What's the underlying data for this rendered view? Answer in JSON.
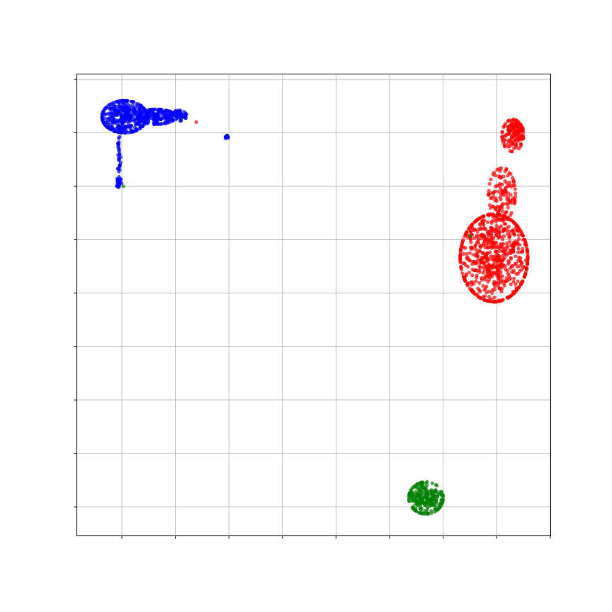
{
  "chart_data": {
    "type": "scatter",
    "title": "",
    "xlabel": "",
    "ylabel": "",
    "x_ticks": [
      0,
      1,
      2,
      3,
      4,
      5,
      6,
      7,
      8
    ],
    "y_ticks": [
      0,
      1,
      2,
      3,
      4,
      5,
      6,
      7,
      8
    ],
    "xlim": [
      -0.84,
      8.01
    ],
    "ylim": [
      -0.54,
      8.1
    ],
    "grid": true,
    "tick_labels_visible": false,
    "point_alpha": 0.65,
    "clusters": [
      {
        "color": "#0000ff",
        "regions": [
          {
            "cx": 0.05,
            "cy": 7.3,
            "rx": 0.42,
            "ry": 0.3,
            "count": 380
          },
          {
            "cx": 0.65,
            "cy": 7.3,
            "rx": 0.35,
            "ry": 0.14,
            "count": 180
          },
          {
            "cx": 1.05,
            "cy": 7.32,
            "rx": 0.16,
            "ry": 0.1,
            "count": 50
          },
          {
            "cx": -0.05,
            "cy": 6.55,
            "rx": 0.03,
            "ry": 0.45,
            "count": 30
          },
          {
            "cx": -0.06,
            "cy": 6.08,
            "rx": 0.05,
            "ry": 0.1,
            "count": 25
          },
          {
            "cx": 1.97,
            "cy": 6.92,
            "rx": 0.05,
            "ry": 0.03,
            "count": 10
          }
        ]
      },
      {
        "color": "#ff0000",
        "regions": [
          {
            "cx": 6.95,
            "cy": 4.66,
            "rx": 0.63,
            "ry": 0.82,
            "count": 720
          },
          {
            "cx": 7.1,
            "cy": 5.85,
            "rx": 0.25,
            "ry": 0.5,
            "count": 130
          },
          {
            "cx": 7.3,
            "cy": 6.95,
            "rx": 0.2,
            "ry": 0.3,
            "count": 110
          },
          {
            "cx": 7.35,
            "cy": 7.08,
            "rx": 0.14,
            "ry": 0.1,
            "count": 50
          }
        ]
      },
      {
        "color": "#008000",
        "regions": [
          {
            "cx": 5.68,
            "cy": 0.17,
            "rx": 0.32,
            "ry": 0.3,
            "count": 240
          }
        ]
      }
    ],
    "stray_points": [
      {
        "x": 1.39,
        "y": 7.2,
        "color": "#ff0000"
      },
      {
        "x": 0.03,
        "y": 6.0,
        "color": "#008000"
      },
      {
        "x": 6.5,
        "y": 5.07,
        "color": "#008000"
      }
    ]
  }
}
